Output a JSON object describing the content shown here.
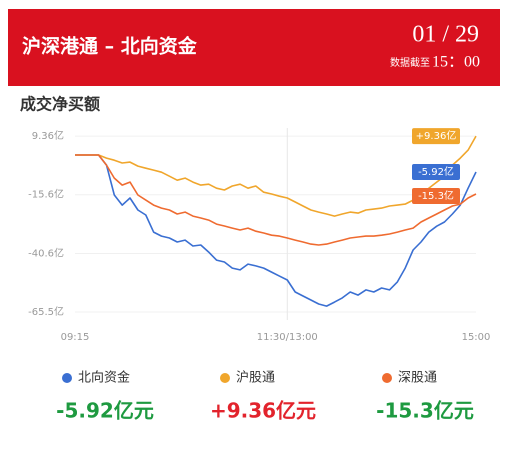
{
  "header": {
    "title": "沪深港通 – 北向资金",
    "date": "01 / 29",
    "time_prefix": "数据截至",
    "time": "15：00"
  },
  "chart_data": {
    "type": "line",
    "title": "成交净买额",
    "categories": [
      "09:15",
      null,
      null,
      null,
      null,
      null,
      null,
      null,
      null,
      null,
      null,
      null,
      null,
      null,
      null,
      null,
      null,
      null,
      null,
      null,
      null,
      null,
      null,
      null,
      null,
      null,
      null,
      "11:30/13:00",
      null,
      null,
      null,
      null,
      null,
      null,
      null,
      null,
      null,
      null,
      null,
      null,
      null,
      null,
      null,
      null,
      null,
      null,
      null,
      null,
      null,
      null,
      null,
      "15:00"
    ],
    "ylim": [
      -68.9,
      12.8
    ],
    "yticks": [
      {
        "value": 9.36,
        "label": "9.36亿"
      },
      {
        "value": -15.6,
        "label": "-15.6亿"
      },
      {
        "value": -40.6,
        "label": "-40.6亿"
      },
      {
        "value": -65.5,
        "label": "-65.5亿"
      }
    ],
    "grid": true,
    "series": [
      {
        "name": "北向资金",
        "color": "#3a6fd2",
        "total_label": "-5.92亿元",
        "total_color": "#1e9a40",
        "values": [
          1.3,
          1.3,
          1.3,
          1.3,
          -3.0,
          -15.7,
          -20.0,
          -17.0,
          -22.1,
          -24.2,
          -31.5,
          -33.2,
          -34.0,
          -35.7,
          -34.9,
          -37.4,
          -37.0,
          -40.0,
          -43.4,
          -44.2,
          -46.8,
          -47.6,
          -45.1,
          -45.9,
          -46.8,
          -48.5,
          -50.2,
          -51.9,
          -57.0,
          -58.7,
          -60.4,
          -62.1,
          -63.0,
          -61.3,
          -59.5,
          -57.0,
          -58.3,
          -56.1,
          -57.0,
          -55.3,
          -56.1,
          -52.7,
          -46.8,
          -39.1,
          -35.7,
          -31.5,
          -29.0,
          -27.2,
          -23.8,
          -20.0,
          -12.8,
          -5.92
        ],
        "value_labels": [
          null,
          null,
          null,
          null,
          null,
          null,
          null,
          null,
          null,
          null,
          null,
          null,
          null,
          null,
          null,
          null,
          null,
          null,
          null,
          null,
          null,
          null,
          null,
          null,
          null,
          null,
          null,
          null,
          null,
          null,
          null,
          null,
          null,
          null,
          null,
          null,
          null,
          null,
          null,
          null,
          null,
          null,
          null,
          null,
          null,
          null,
          null,
          null,
          null,
          null,
          null,
          "-5.92亿"
        ]
      },
      {
        "name": "沪股通",
        "color": "#f0a62c",
        "total_label": "+9.36亿元",
        "total_color": "#e2232c",
        "values": [
          1.3,
          1.3,
          1.3,
          1.3,
          0,
          -0.9,
          -2.1,
          -1.7,
          -3.4,
          -4.3,
          -5.1,
          -6.0,
          -7.7,
          -9.4,
          -8.5,
          -10.2,
          -11.5,
          -11.1,
          -12.8,
          -13.6,
          -11.9,
          -11.1,
          -12.8,
          -11.9,
          -14.5,
          -15.3,
          -16.2,
          -17.0,
          -18.7,
          -20.4,
          -22.1,
          -23.0,
          -23.8,
          -24.7,
          -23.8,
          -23.0,
          -23.4,
          -22.1,
          -21.7,
          -21.3,
          -20.4,
          -20.0,
          -19.6,
          -17.9,
          -16.2,
          -12.8,
          -10.2,
          -7.7,
          -3.0,
          0,
          3.4,
          9.36
        ],
        "value_labels": [
          null,
          null,
          null,
          null,
          null,
          null,
          null,
          null,
          null,
          null,
          null,
          null,
          null,
          null,
          null,
          null,
          null,
          null,
          null,
          null,
          null,
          null,
          null,
          null,
          null,
          null,
          null,
          null,
          null,
          null,
          null,
          null,
          null,
          null,
          null,
          null,
          null,
          null,
          null,
          null,
          null,
          null,
          null,
          null,
          null,
          null,
          null,
          null,
          null,
          null,
          null,
          "+9.36亿"
        ]
      },
      {
        "name": "深股通",
        "color": "#ef6b30",
        "total_label": "-15.3亿元",
        "total_color": "#1e9a40",
        "values": [
          1.3,
          1.3,
          1.3,
          1.3,
          -3.0,
          -8.5,
          -11.5,
          -10.2,
          -15.7,
          -17.9,
          -20.0,
          -21.3,
          -22.1,
          -23.8,
          -23.0,
          -24.7,
          -25.5,
          -26.4,
          -28.1,
          -28.9,
          -29.8,
          -30.6,
          -29.8,
          -31.1,
          -31.9,
          -32.8,
          -33.2,
          -34.0,
          -34.9,
          -35.7,
          -36.6,
          -37.0,
          -36.6,
          -35.7,
          -34.9,
          -34.0,
          -33.6,
          -33.2,
          -33.2,
          -32.8,
          -32.3,
          -31.5,
          -30.6,
          -29.8,
          -27.2,
          -25.5,
          -23.8,
          -22.1,
          -20.4,
          -19.6,
          -17.0,
          -15.3
        ],
        "value_labels": [
          null,
          null,
          null,
          null,
          null,
          null,
          null,
          null,
          null,
          null,
          null,
          null,
          null,
          null,
          null,
          null,
          null,
          null,
          null,
          null,
          null,
          null,
          null,
          null,
          null,
          null,
          null,
          null,
          null,
          null,
          null,
          null,
          null,
          null,
          null,
          null,
          null,
          null,
          null,
          null,
          null,
          null,
          null,
          null,
          null,
          null,
          null,
          null,
          null,
          null,
          null,
          "-15.3亿"
        ]
      }
    ]
  }
}
